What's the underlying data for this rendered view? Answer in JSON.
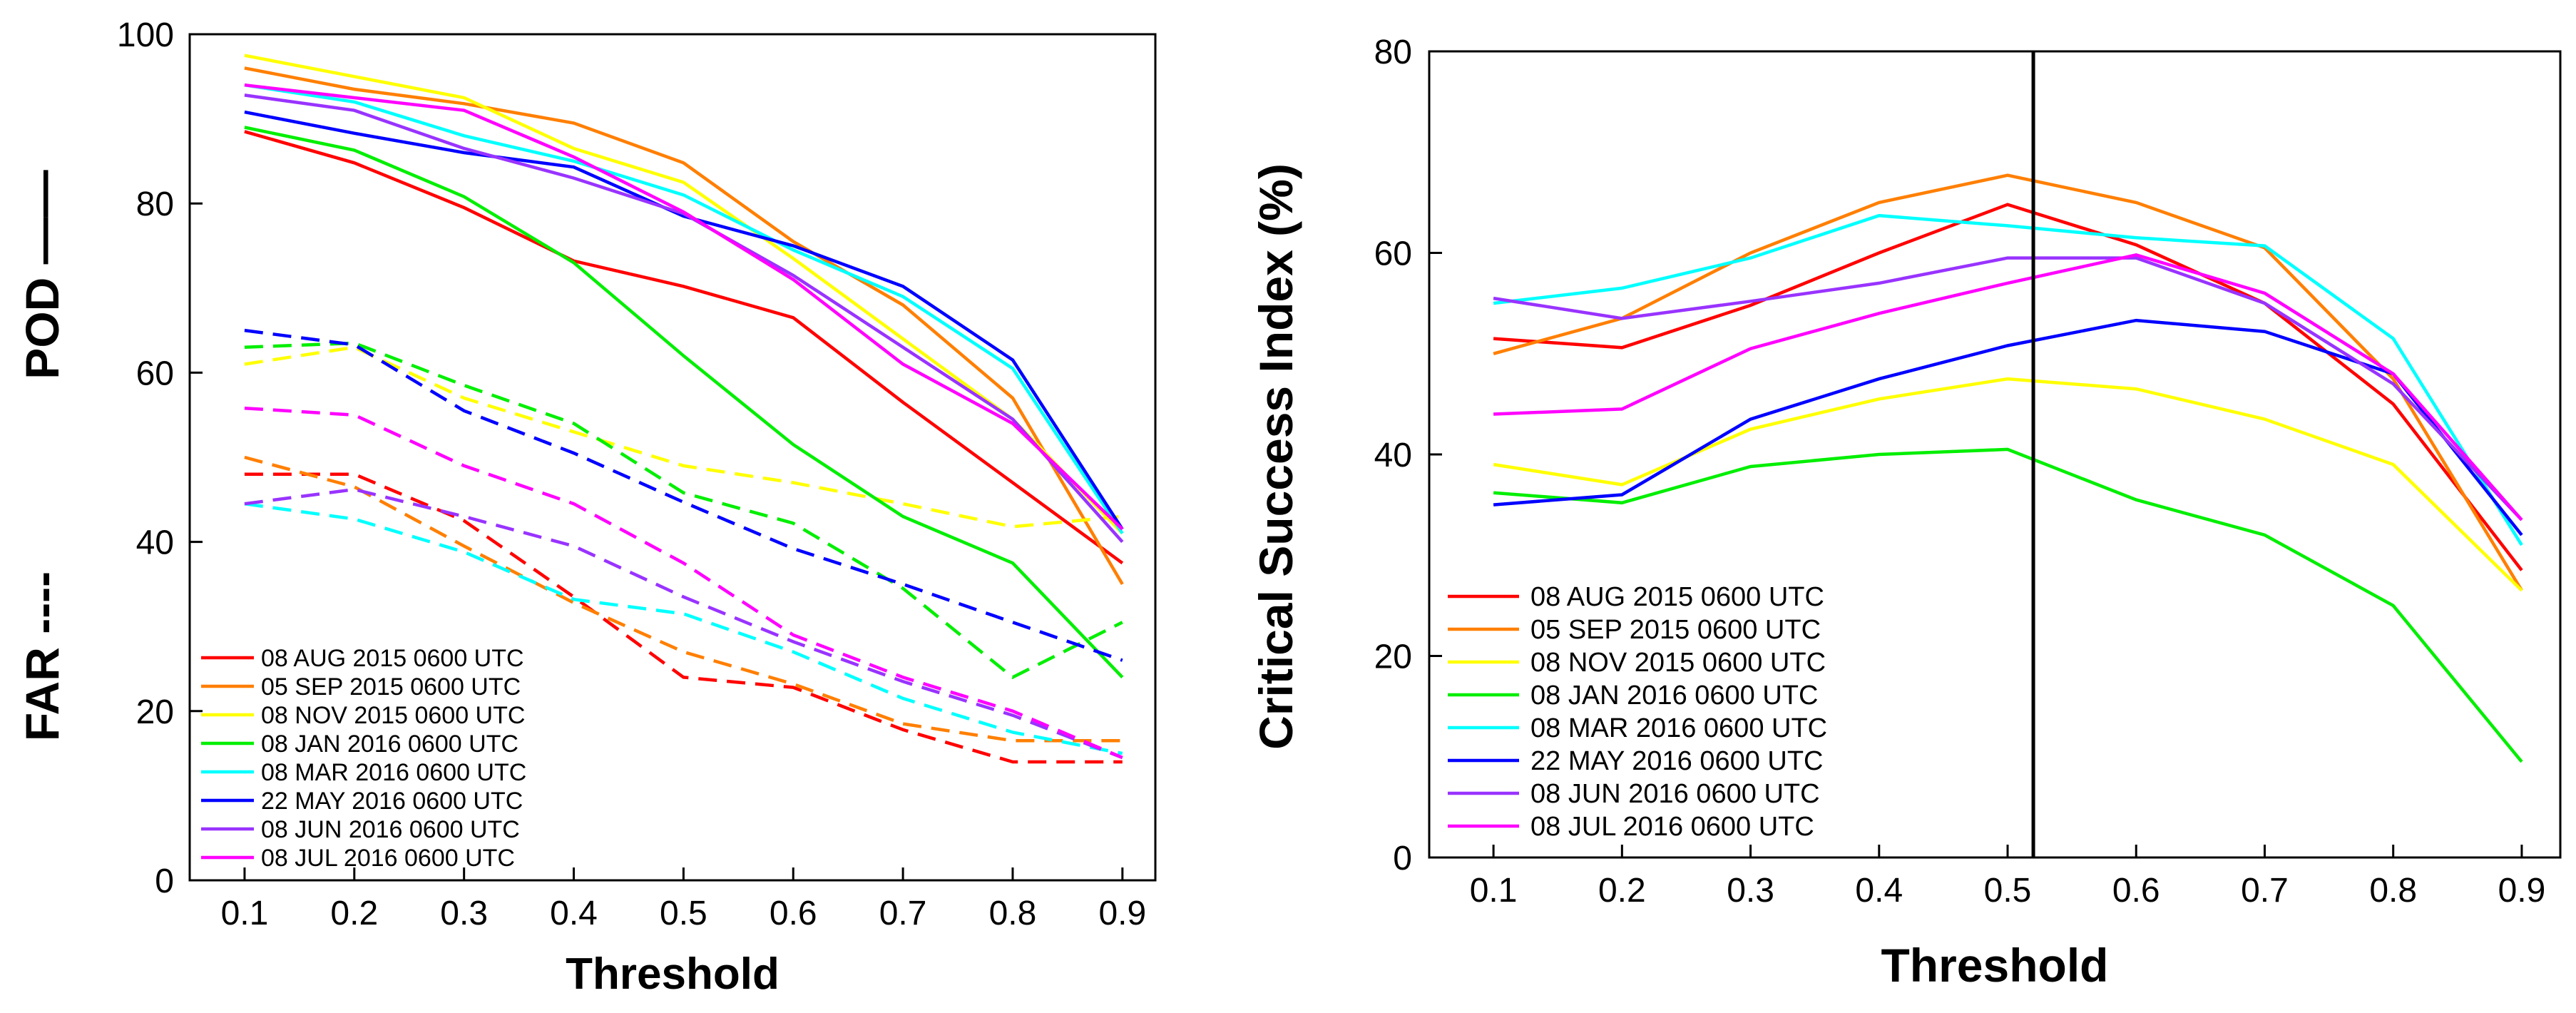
{
  "chart_data": [
    {
      "type": "line",
      "xlabel": "Threshold",
      "ylabel_parts": [
        "FAR ----",
        "POD ——"
      ],
      "x": [
        0.1,
        0.2,
        0.3,
        0.4,
        0.5,
        0.6,
        0.7,
        0.8,
        0.9
      ],
      "xticks": [
        "0.1",
        "0.2",
        "0.3",
        "0.4",
        "0.5",
        "0.6",
        "0.7",
        "0.8",
        "0.9"
      ],
      "ylim": [
        0,
        100
      ],
      "yticks": [
        "0",
        "20",
        "40",
        "60",
        "80",
        "100"
      ],
      "grid": false,
      "legend_position": "bottom-left",
      "series": [
        {
          "name": "08 AUG 2015 0600 UTC",
          "color": "#ff0000",
          "pod": [
            88.5,
            84.8,
            79.5,
            73.2,
            70.2,
            66.5,
            56.5,
            47.0,
            37.5
          ],
          "far": [
            48.0,
            48.0,
            42.5,
            33.5,
            24.0,
            22.8,
            17.8,
            14.0,
            14.0
          ]
        },
        {
          "name": "05 SEP 2015 0600 UTC",
          "color": "#ff7f00",
          "pod": [
            96.0,
            93.5,
            91.8,
            89.5,
            84.8,
            75.5,
            68.0,
            57.0,
            35.0
          ],
          "far": [
            50.0,
            46.5,
            39.5,
            32.8,
            27.0,
            23.2,
            18.5,
            16.5,
            16.5
          ]
        },
        {
          "name": "08 NOV 2015 0600 UTC",
          "color": "#ffff00",
          "pod": [
            97.5,
            95.0,
            92.5,
            86.5,
            82.5,
            73.5,
            64.0,
            54.5,
            41.0
          ],
          "far": [
            61.0,
            63.0,
            57.0,
            53.0,
            49.0,
            47.0,
            44.5,
            41.8,
            43.0
          ]
        },
        {
          "name": "08 JAN 2016 0600 UTC",
          "color": "#00ee00",
          "pod": [
            89.0,
            86.3,
            80.8,
            73.0,
            62.0,
            51.5,
            43.0,
            37.5,
            24.0
          ],
          "far": [
            63.0,
            63.5,
            58.5,
            54.0,
            45.8,
            42.2,
            34.5,
            24.0,
            30.5
          ]
        },
        {
          "name": "08 MAR 2016 0600 UTC",
          "color": "#00ffff",
          "pod": [
            94.0,
            92.0,
            88.0,
            85.0,
            81.0,
            74.5,
            69.0,
            60.5,
            41.0
          ],
          "far": [
            44.5,
            42.7,
            38.8,
            33.2,
            31.5,
            27.0,
            21.5,
            17.5,
            15.0
          ]
        },
        {
          "name": "22 MAY 2016 0600 UTC",
          "color": "#0000ff",
          "pod": [
            90.8,
            88.3,
            86.0,
            84.3,
            78.5,
            75.0,
            70.2,
            61.5,
            41.5
          ],
          "far": [
            65.0,
            63.3,
            55.5,
            50.5,
            44.7,
            39.2,
            35.0,
            30.5,
            26.0
          ]
        },
        {
          "name": "08 JUN 2016 0600 UTC",
          "color": "#9933ff",
          "pod": [
            92.8,
            91.0,
            86.5,
            83.0,
            78.8,
            71.5,
            63.0,
            54.5,
            40.0
          ],
          "far": [
            44.5,
            46.2,
            43.0,
            39.5,
            33.5,
            28.2,
            23.5,
            19.5,
            14.5
          ]
        },
        {
          "name": "08 JUL 2016 0600 UTC",
          "color": "#ff00ff",
          "pod": [
            94.0,
            92.5,
            91.0,
            85.5,
            79.0,
            71.0,
            61.0,
            54.0,
            41.5
          ],
          "far": [
            55.8,
            55.0,
            49.0,
            44.5,
            37.5,
            29.0,
            24.0,
            20.0,
            14.5
          ]
        }
      ]
    },
    {
      "type": "line",
      "xlabel": "Threshold",
      "ylabel": "Critical Success Index (%)",
      "x": [
        0.1,
        0.2,
        0.3,
        0.4,
        0.5,
        0.6,
        0.7,
        0.8,
        0.9
      ],
      "xticks": [
        "0.1",
        "0.2",
        "0.3",
        "0.4",
        "0.5",
        "0.6",
        "0.7",
        "0.8",
        "0.9"
      ],
      "ylim": [
        0,
        80
      ],
      "yticks": [
        "0",
        "20",
        "40",
        "60",
        "80"
      ],
      "grid": false,
      "legend_position": "bottom-left",
      "vline_x": 0.52,
      "series": [
        {
          "name": "08 AUG 2015 0600 UTC",
          "color": "#ff0000",
          "values": [
            51.5,
            50.6,
            54.8,
            60.0,
            64.8,
            60.8,
            55.0,
            45.0,
            28.5
          ]
        },
        {
          "name": "05 SEP 2015 0600 UTC",
          "color": "#ff7f00",
          "values": [
            50.0,
            53.5,
            60.0,
            65.0,
            67.7,
            65.0,
            60.5,
            47.5,
            26.5
          ]
        },
        {
          "name": "08 NOV 2015 0600 UTC",
          "color": "#ffff00",
          "values": [
            39.0,
            37.0,
            42.5,
            45.5,
            47.5,
            46.5,
            43.5,
            39.0,
            26.5
          ]
        },
        {
          "name": "08 JAN 2016 0600 UTC",
          "color": "#00ee00",
          "values": [
            36.2,
            35.2,
            38.8,
            40.0,
            40.5,
            35.5,
            32.0,
            25.0,
            9.5
          ]
        },
        {
          "name": "08 MAR 2016 0600 UTC",
          "color": "#00ffff",
          "values": [
            55.0,
            56.5,
            59.5,
            63.7,
            62.7,
            61.5,
            60.7,
            51.5,
            31.0
          ]
        },
        {
          "name": "22 MAY 2016 0600 UTC",
          "color": "#0000ff",
          "values": [
            35.0,
            36.0,
            43.5,
            47.5,
            50.8,
            53.3,
            52.2,
            48.0,
            32.0
          ]
        },
        {
          "name": "08 JUN 2016 0600 UTC",
          "color": "#9933ff",
          "values": [
            55.5,
            53.5,
            55.2,
            57.0,
            59.5,
            59.5,
            55.0,
            47.0,
            33.5
          ]
        },
        {
          "name": "08 JUL 2016 0600 UTC",
          "color": "#ff00ff",
          "values": [
            44.0,
            44.5,
            50.5,
            54.0,
            57.0,
            59.8,
            56.0,
            48.0,
            33.5
          ]
        }
      ]
    }
  ]
}
